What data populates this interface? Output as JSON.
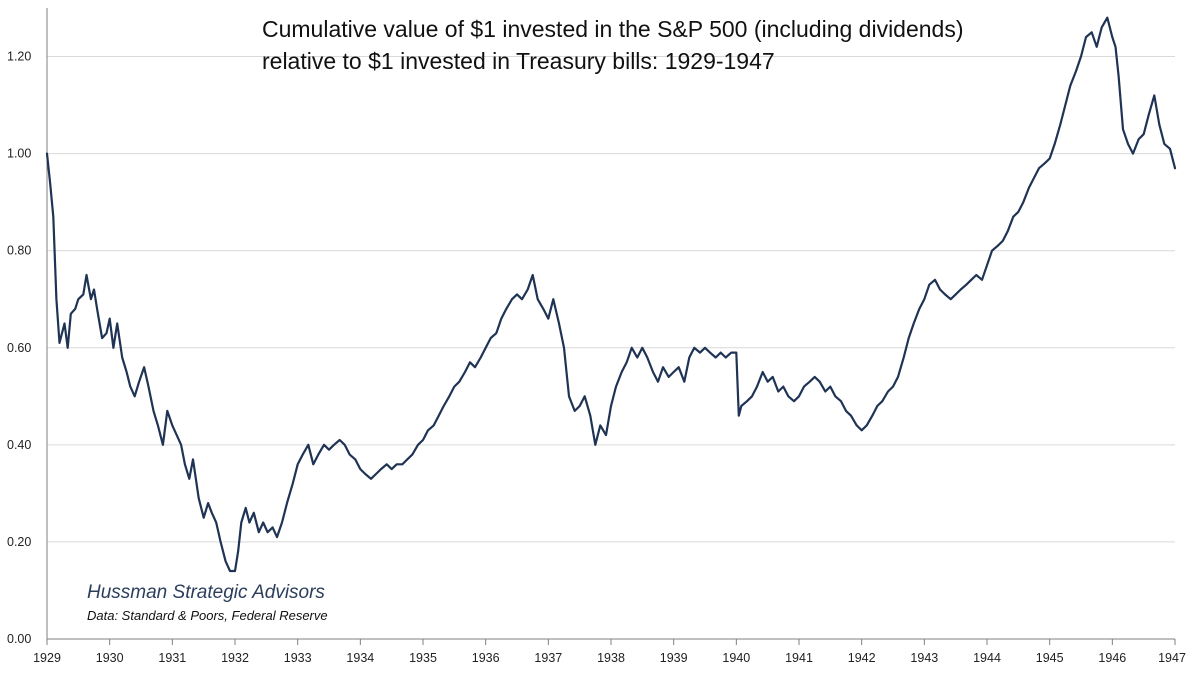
{
  "chart_data": {
    "type": "line",
    "title_lines": [
      "Cumulative value of $1 invested in the S&P 500 (including dividends)",
      "relative to $1 invested in Treasury bills: 1929-1947"
    ],
    "xlabel": "",
    "ylabel": "",
    "xlim": [
      1929,
      1947
    ],
    "ylim": [
      0,
      1.3
    ],
    "x_ticks": [
      "1929",
      "1930",
      "1931",
      "1932",
      "1933",
      "1934",
      "1935",
      "1936",
      "1937",
      "1938",
      "1939",
      "1940",
      "1941",
      "1942",
      "1943",
      "1944",
      "1945",
      "1946",
      "1947"
    ],
    "y_ticks": [
      "0.00",
      "0.20",
      "0.40",
      "0.60",
      "0.80",
      "1.00",
      "1.20"
    ],
    "grid": "horizontal",
    "line_color": "#1f3354",
    "series": [
      {
        "x": [
          1929.0,
          1929.05,
          1929.1,
          1929.15,
          1929.2,
          1929.28,
          1929.33,
          1929.38,
          1929.45,
          1929.5,
          1929.58,
          1929.63,
          1929.7,
          1929.75,
          1929.8,
          1929.88,
          1929.95,
          1930.0,
          1930.06,
          1930.12,
          1930.2,
          1930.27,
          1930.33,
          1930.4,
          1930.47,
          1930.55,
          1930.62,
          1930.7,
          1930.77,
          1930.85,
          1930.92,
          1931.0,
          1931.07,
          1931.14,
          1931.2,
          1931.27,
          1931.33,
          1931.42,
          1931.5,
          1931.57,
          1931.63,
          1931.7,
          1931.77,
          1931.85,
          1931.92,
          1932.0,
          1932.05,
          1932.1,
          1932.17,
          1932.23,
          1932.3,
          1932.38,
          1932.45,
          1932.52,
          1932.6,
          1932.67,
          1932.75,
          1932.83,
          1932.92,
          1933.0,
          1933.08,
          1933.17,
          1933.25,
          1933.33,
          1933.42,
          1933.5,
          1933.58,
          1933.67,
          1933.75,
          1933.83,
          1933.92,
          1934.0,
          1934.08,
          1934.17,
          1934.25,
          1934.33,
          1934.42,
          1934.5,
          1934.58,
          1934.67,
          1934.75,
          1934.83,
          1934.92,
          1935.0,
          1935.08,
          1935.17,
          1935.25,
          1935.33,
          1935.42,
          1935.5,
          1935.58,
          1935.67,
          1935.75,
          1935.83,
          1935.92,
          1936.0,
          1936.08,
          1936.17,
          1936.25,
          1936.33,
          1936.42,
          1936.5,
          1936.58,
          1936.67,
          1936.75,
          1936.83,
          1936.92,
          1937.0,
          1937.08,
          1937.17,
          1937.25,
          1937.33,
          1937.42,
          1937.5,
          1937.58,
          1937.67,
          1937.75,
          1937.83,
          1937.92,
          1938.0,
          1938.08,
          1938.17,
          1938.25,
          1938.33,
          1938.42,
          1938.5,
          1938.58,
          1938.67,
          1938.75,
          1938.83,
          1938.92,
          1939.0,
          1939.08,
          1939.17,
          1939.25,
          1939.33,
          1939.42,
          1939.5,
          1939.58,
          1939.67,
          1939.75,
          1939.83,
          1939.92,
          1940.0,
          1940.04,
          1940.08,
          1940.17,
          1940.25,
          1940.33,
          1940.42,
          1940.5,
          1940.58,
          1940.67,
          1940.75,
          1940.83,
          1940.92,
          1941.0,
          1941.08,
          1941.17,
          1941.25,
          1941.33,
          1941.42,
          1941.5,
          1941.58,
          1941.67,
          1941.75,
          1941.83,
          1941.92,
          1942.0,
          1942.08,
          1942.17,
          1942.25,
          1942.33,
          1942.42,
          1942.5,
          1942.58,
          1942.67,
          1942.75,
          1942.83,
          1942.92,
          1943.0,
          1943.08,
          1943.17,
          1943.25,
          1943.33,
          1943.42,
          1943.5,
          1943.58,
          1943.67,
          1943.75,
          1943.83,
          1943.92,
          1944.0,
          1944.08,
          1944.17,
          1944.25,
          1944.33,
          1944.42,
          1944.5,
          1944.58,
          1944.67,
          1944.75,
          1944.83,
          1944.92,
          1945.0,
          1945.08,
          1945.17,
          1945.25,
          1945.33,
          1945.42,
          1945.5,
          1945.58,
          1945.67,
          1945.75,
          1945.83,
          1945.92,
          1946.0,
          1946.05,
          1946.1,
          1946.17,
          1946.25,
          1946.33,
          1946.42,
          1946.5,
          1946.58,
          1946.67,
          1946.75,
          1946.83,
          1946.92,
          1947.0
        ],
        "values": [
          1.0,
          0.94,
          0.87,
          0.7,
          0.61,
          0.65,
          0.6,
          0.67,
          0.68,
          0.7,
          0.71,
          0.75,
          0.7,
          0.72,
          0.68,
          0.62,
          0.63,
          0.66,
          0.6,
          0.65,
          0.58,
          0.55,
          0.52,
          0.5,
          0.53,
          0.56,
          0.52,
          0.47,
          0.44,
          0.4,
          0.47,
          0.44,
          0.42,
          0.4,
          0.36,
          0.33,
          0.37,
          0.29,
          0.25,
          0.28,
          0.26,
          0.24,
          0.2,
          0.16,
          0.14,
          0.14,
          0.18,
          0.24,
          0.27,
          0.24,
          0.26,
          0.22,
          0.24,
          0.22,
          0.23,
          0.21,
          0.24,
          0.28,
          0.32,
          0.36,
          0.38,
          0.4,
          0.36,
          0.38,
          0.4,
          0.39,
          0.4,
          0.41,
          0.4,
          0.38,
          0.37,
          0.35,
          0.34,
          0.33,
          0.34,
          0.35,
          0.36,
          0.35,
          0.36,
          0.36,
          0.37,
          0.38,
          0.4,
          0.41,
          0.43,
          0.44,
          0.46,
          0.48,
          0.5,
          0.52,
          0.53,
          0.55,
          0.57,
          0.56,
          0.58,
          0.6,
          0.62,
          0.63,
          0.66,
          0.68,
          0.7,
          0.71,
          0.7,
          0.72,
          0.75,
          0.7,
          0.68,
          0.66,
          0.7,
          0.65,
          0.6,
          0.5,
          0.47,
          0.48,
          0.5,
          0.46,
          0.4,
          0.44,
          0.42,
          0.48,
          0.52,
          0.55,
          0.57,
          0.6,
          0.58,
          0.6,
          0.58,
          0.55,
          0.53,
          0.56,
          0.54,
          0.55,
          0.56,
          0.53,
          0.58,
          0.6,
          0.59,
          0.6,
          0.59,
          0.58,
          0.59,
          0.58,
          0.59,
          0.59,
          0.46,
          0.48,
          0.49,
          0.5,
          0.52,
          0.55,
          0.53,
          0.54,
          0.51,
          0.52,
          0.5,
          0.49,
          0.5,
          0.52,
          0.53,
          0.54,
          0.53,
          0.51,
          0.52,
          0.5,
          0.49,
          0.47,
          0.46,
          0.44,
          0.43,
          0.44,
          0.46,
          0.48,
          0.49,
          0.51,
          0.52,
          0.54,
          0.58,
          0.62,
          0.65,
          0.68,
          0.7,
          0.73,
          0.74,
          0.72,
          0.71,
          0.7,
          0.71,
          0.72,
          0.73,
          0.74,
          0.75,
          0.74,
          0.77,
          0.8,
          0.81,
          0.82,
          0.84,
          0.87,
          0.88,
          0.9,
          0.93,
          0.95,
          0.97,
          0.98,
          0.99,
          1.02,
          1.06,
          1.1,
          1.14,
          1.17,
          1.2,
          1.24,
          1.25,
          1.22,
          1.26,
          1.28,
          1.24,
          1.22,
          1.16,
          1.05,
          1.02,
          1.0,
          1.03,
          1.04,
          1.08,
          1.12,
          1.06,
          1.02,
          1.01,
          0.97
        ]
      }
    ]
  },
  "annotations": {
    "brand": "Hussman Strategic Advisors",
    "source": "Data: Standard & Poors, Federal Reserve"
  }
}
